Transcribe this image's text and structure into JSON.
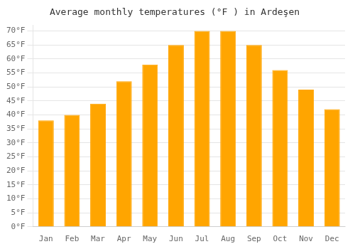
{
  "chart_data": {
    "type": "bar",
    "title": "Average monthly temperatures (°F ) in Ardeşen",
    "categories": [
      "Jan",
      "Feb",
      "Mar",
      "Apr",
      "May",
      "Jun",
      "Jul",
      "Aug",
      "Sep",
      "Oct",
      "Nov",
      "Dec"
    ],
    "values": [
      38,
      40,
      44,
      52,
      58,
      65,
      70,
      70,
      65,
      56,
      49,
      42
    ],
    "color": "#FFA500",
    "ylim": [
      0,
      72
    ],
    "yticks": [
      {
        "value": 0,
        "label": "0°F"
      },
      {
        "value": 5,
        "label": "5°F"
      },
      {
        "value": 10,
        "label": "10°F"
      },
      {
        "value": 15,
        "label": "15°F"
      },
      {
        "value": 20,
        "label": "20°F"
      },
      {
        "value": 25,
        "label": "25°F"
      },
      {
        "value": 30,
        "label": "30°F"
      },
      {
        "value": 35,
        "label": "35°F"
      },
      {
        "value": 40,
        "label": "40°F"
      },
      {
        "value": 45,
        "label": "45°F"
      },
      {
        "value": 50,
        "label": "50°F"
      },
      {
        "value": 55,
        "label": "55°F"
      },
      {
        "value": 60,
        "label": "60°F"
      },
      {
        "value": 65,
        "label": "65°F"
      },
      {
        "value": 70,
        "label": "70°F"
      }
    ],
    "grid": true
  }
}
